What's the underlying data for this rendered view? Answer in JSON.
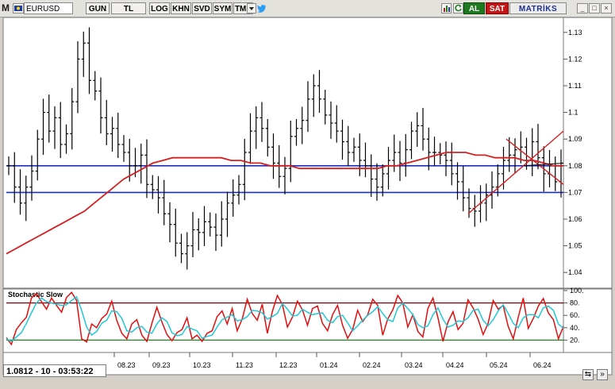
{
  "toolbar": {
    "m_logo": "M",
    "symbol": "EURUSD",
    "buttons": [
      "GUN",
      "TL",
      "LOG",
      "KHN",
      "SVD",
      "SYM",
      "TMP"
    ],
    "buy_label": "AL",
    "sell_label": "SAT",
    "brand": "MATRİKS",
    "window_controls": [
      "minimize-icon",
      "maximize-icon",
      "close-icon"
    ],
    "icons": [
      "dropdown-arrow-icon",
      "twitter-icon",
      "flag-icon",
      "refresh-icon",
      "chart-icon"
    ]
  },
  "status": {
    "readout": "1.0812 - 10 - 03:53:22"
  },
  "chart_data": [
    {
      "type": "line",
      "description_visible": "candlestick",
      "title": "",
      "y_ticks": [
        "1.13",
        "1.12",
        "1.11",
        "1.1",
        "1.09",
        "1.08",
        "1.07",
        "1.06",
        "1.05",
        "1.04"
      ],
      "ylim": [
        1.035,
        1.135
      ],
      "x_ticks": [
        "08.23",
        "09.23",
        "10.23",
        "11.23",
        "12.23",
        "01.24",
        "02.24",
        "03.24",
        "04.24",
        "05.24",
        "06.24"
      ],
      "series": [
        {
          "kind": "close",
          "values": [
            1.08,
            1.072,
            1.066,
            1.072,
            1.078,
            1.09,
            1.1,
            1.093,
            1.098,
            1.088,
            1.092,
            1.104,
            1.12,
            1.126,
            1.112,
            1.108,
            1.098,
            1.092,
            1.094,
            1.088,
            1.085,
            1.08,
            1.08,
            1.084,
            1.073,
            1.071,
            1.068,
            1.062,
            1.058,
            1.051,
            1.047,
            1.05,
            1.056,
            1.055,
            1.059,
            1.057,
            1.054,
            1.06,
            1.066,
            1.069,
            1.073,
            1.085,
            1.093,
            1.098,
            1.094,
            1.087,
            1.081,
            1.076,
            1.079,
            1.091,
            1.094,
            1.097,
            1.105,
            1.11,
            1.105,
            1.099,
            1.096,
            1.093,
            1.089,
            1.085,
            1.087,
            1.082,
            1.08,
            1.075,
            1.072,
            1.077,
            1.082,
            1.085,
            1.081,
            1.086,
            1.093,
            1.095,
            1.09,
            1.085,
            1.085,
            1.084,
            1.082,
            1.077,
            1.074,
            1.068,
            1.064,
            1.063,
            1.066,
            1.069,
            1.072,
            1.077,
            1.082,
            1.084,
            1.086,
            1.087,
            1.082,
            1.089,
            1.083,
            1.077,
            1.08,
            1.074,
            1.081
          ]
        },
        {
          "name": "",
          "kind": "moving-average",
          "color": "#d42020",
          "values": [
            1.047,
            1.049,
            1.051,
            1.053,
            1.055,
            1.057,
            1.059,
            1.061,
            1.063,
            1.066,
            1.069,
            1.072,
            1.075,
            1.077,
            1.079,
            1.081,
            1.082,
            1.083,
            1.083,
            1.083,
            1.083,
            1.083,
            1.083,
            1.082,
            1.082,
            1.081,
            1.081,
            1.08,
            1.08,
            1.08,
            1.079,
            1.079,
            1.079,
            1.079,
            1.079,
            1.079,
            1.079,
            1.079,
            1.079,
            1.08,
            1.08,
            1.081,
            1.082,
            1.083,
            1.084,
            1.085,
            1.085,
            1.085,
            1.084,
            1.084,
            1.083,
            1.083,
            1.083,
            1.082,
            1.082,
            1.081,
            1.08,
            1.08
          ]
        }
      ],
      "horizontal_lines": [
        {
          "value": 1.08,
          "color": "#1c2ec8"
        },
        {
          "value": 1.07,
          "color": "#1c2ec8"
        }
      ],
      "grid": false
    },
    {
      "type": "line",
      "title": "Stochastic Slow",
      "y_ticks": [
        "100",
        "80",
        "60",
        "40",
        "20"
      ],
      "ylim": [
        0,
        100
      ],
      "levels": [
        {
          "value": 80,
          "color": "#8b0000"
        },
        {
          "value": 20,
          "color": "#1a8a1a"
        }
      ],
      "series": [
        {
          "kind": "%K",
          "color": "#e01010",
          "values": [
            24,
            13,
            37,
            48,
            57,
            88,
            95,
            82,
            70,
            88,
            76,
            65,
            89,
            97,
            84,
            22,
            17,
            46,
            40,
            55,
            62,
            83,
            52,
            31,
            22,
            46,
            53,
            28,
            18,
            47,
            73,
            49,
            29,
            19,
            32,
            37,
            56,
            22,
            28,
            18,
            31,
            35,
            58,
            67,
            46,
            71,
            35,
            54,
            86,
            63,
            52,
            78,
            31,
            66,
            92,
            78,
            41,
            57,
            83,
            69,
            44,
            71,
            75,
            47,
            35,
            61,
            76,
            44,
            23,
            37,
            68,
            50,
            61,
            86,
            76,
            28,
            54,
            69,
            92,
            80,
            41,
            61,
            34,
            25,
            71,
            88,
            56,
            18,
            49,
            66,
            37,
            47,
            85,
            72,
            54,
            29,
            47,
            84,
            70,
            76,
            42,
            22,
            57,
            88,
            39,
            55,
            75,
            87,
            64,
            53,
            22,
            42
          ]
        },
        {
          "kind": "%D",
          "color": "#20c8d8",
          "values": [
            22,
            18,
            25,
            32,
            47,
            64,
            80,
            88,
            82,
            80,
            78,
            76,
            77,
            84,
            90,
            68,
            41,
            28,
            34,
            47,
            52,
            67,
            66,
            55,
            35,
            33,
            40,
            42,
            33,
            31,
            46,
            56,
            50,
            32,
            27,
            29,
            42,
            38,
            35,
            23,
            26,
            28,
            41,
            53,
            57,
            61,
            51,
            53,
            58,
            68,
            67,
            64,
            54,
            58,
            63,
            79,
            70,
            59,
            60,
            70,
            65,
            61,
            63,
            64,
            52,
            48,
            58,
            60,
            48,
            35,
            43,
            52,
            60,
            66,
            74,
            63,
            53,
            50,
            72,
            80,
            71,
            61,
            45,
            40,
            43,
            61,
            72,
            54,
            41,
            44,
            51,
            50,
            56,
            68,
            70,
            52,
            43,
            53,
            67,
            77,
            63,
            47,
            40,
            56,
            61,
            61,
            56,
            72,
            75,
            68,
            46,
            39
          ]
        }
      ],
      "grid": false
    }
  ]
}
